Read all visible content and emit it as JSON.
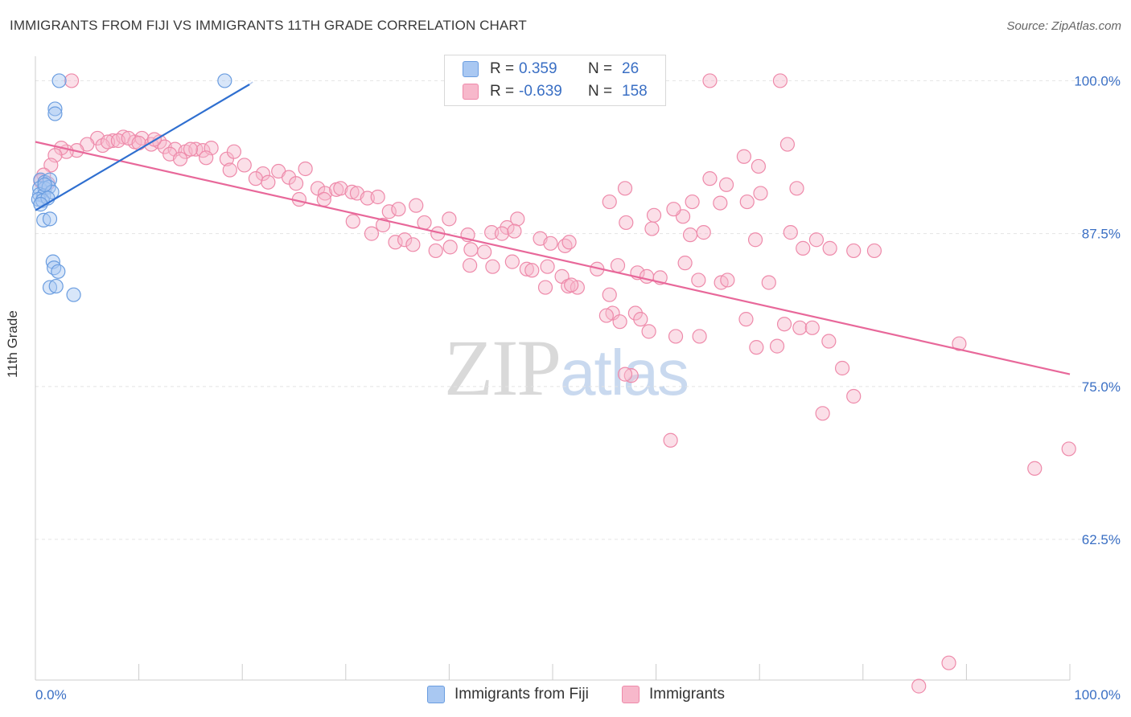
{
  "title": "IMMIGRANTS FROM FIJI VS IMMIGRANTS 11TH GRADE CORRELATION CHART",
  "source": "Source: ZipAtlas.com",
  "watermark": {
    "zip": "ZIP",
    "atlas": "atlas"
  },
  "legend": {
    "r_label": "R =",
    "n_label": "N =",
    "rows": [
      {
        "r": "0.359",
        "n": "26",
        "color": "#a9c8f2"
      },
      {
        "r": "-0.639",
        "n": "158",
        "color": "#f7b8cb"
      }
    ]
  },
  "bottom_legend": [
    {
      "label": "Immigrants from Fiji",
      "color": "#a9c8f2"
    },
    {
      "label": "Immigrants",
      "color": "#f7b8cb"
    }
  ],
  "colors": {
    "fiji_fill": "#a9c8f2",
    "fiji_stroke": "#6a9de0",
    "fiji_line": "#2f6fd0",
    "imm_fill": "#f7b8cb",
    "imm_stroke": "#ee8aaa",
    "imm_line": "#e8689a",
    "tick_text": "#3a6fc4"
  },
  "chart_data": {
    "type": "scatter",
    "ylabel": "11th Grade",
    "xlim": [
      0,
      100
    ],
    "ylim": [
      51,
      102
    ],
    "x_tick_labels": [
      {
        "value": 0,
        "label": "0.0%"
      },
      {
        "value": 100,
        "label": "100.0%"
      }
    ],
    "y_tick_labels": [
      {
        "value": 100,
        "label": "100.0%"
      },
      {
        "value": 87.5,
        "label": "87.5%"
      },
      {
        "value": 75,
        "label": "75.0%"
      },
      {
        "value": 62.5,
        "label": "62.5%"
      }
    ],
    "grid": true,
    "series": [
      {
        "name": "Immigrants from Fiji",
        "trend": {
          "x": [
            0,
            20.7
          ],
          "y": [
            89.4,
            99.7
          ]
        },
        "points": [
          [
            2.3,
            100
          ],
          [
            18.3,
            100
          ],
          [
            1.9,
            97.7
          ],
          [
            1.9,
            97.3
          ],
          [
            0.5,
            91.9
          ],
          [
            0.9,
            91.7
          ],
          [
            1.4,
            91.9
          ],
          [
            0.4,
            91.2
          ],
          [
            0.9,
            91.2
          ],
          [
            1.3,
            91.3
          ],
          [
            0.4,
            90.7
          ],
          [
            0.8,
            90.6
          ],
          [
            1.6,
            90.9
          ],
          [
            0.3,
            90.3
          ],
          [
            0.7,
            90.2
          ],
          [
            1.2,
            90.4
          ],
          [
            0.5,
            89.9
          ],
          [
            0.8,
            88.6
          ],
          [
            1.4,
            88.7
          ],
          [
            1.7,
            85.2
          ],
          [
            1.8,
            84.7
          ],
          [
            2.2,
            84.4
          ],
          [
            1.4,
            83.1
          ],
          [
            2.0,
            83.2
          ],
          [
            3.7,
            82.5
          ],
          [
            0.9,
            91.5
          ]
        ]
      },
      {
        "name": "Immigrants",
        "trend": {
          "x": [
            0,
            100
          ],
          "y": [
            95.0,
            76.0
          ]
        },
        "points": [
          [
            65.2,
            100
          ],
          [
            72.0,
            100
          ],
          [
            3.5,
            100
          ],
          [
            6.0,
            95.3
          ],
          [
            7.5,
            95.1
          ],
          [
            8.5,
            95.4
          ],
          [
            9.6,
            95.0
          ],
          [
            10.3,
            95.3
          ],
          [
            11.2,
            94.8
          ],
          [
            12.0,
            95.0
          ],
          [
            12.5,
            94.6
          ],
          [
            13.5,
            94.4
          ],
          [
            14.5,
            94.2
          ],
          [
            15.5,
            94.4
          ],
          [
            16.2,
            94.3
          ],
          [
            17.0,
            94.5
          ],
          [
            5.0,
            94.8
          ],
          [
            4.0,
            94.3
          ],
          [
            3.0,
            94.2
          ],
          [
            2.5,
            94.5
          ],
          [
            1.9,
            93.9
          ],
          [
            6.5,
            94.7
          ],
          [
            7.0,
            95.0
          ],
          [
            8.0,
            95.1
          ],
          [
            9.0,
            95.3
          ],
          [
            10.0,
            94.9
          ],
          [
            11.5,
            95.2
          ],
          [
            13.0,
            94.0
          ],
          [
            14.0,
            93.6
          ],
          [
            15.0,
            94.4
          ],
          [
            16.5,
            93.7
          ],
          [
            18.5,
            93.6
          ],
          [
            19.2,
            94.2
          ],
          [
            1.5,
            93.1
          ],
          [
            0.8,
            92.3
          ],
          [
            0.5,
            91.8
          ],
          [
            1.2,
            91.6
          ],
          [
            18.8,
            92.7
          ],
          [
            20.2,
            93.1
          ],
          [
            22.0,
            92.4
          ],
          [
            23.5,
            92.6
          ],
          [
            21.3,
            92.0
          ],
          [
            22.5,
            91.7
          ],
          [
            24.5,
            92.1
          ],
          [
            26.1,
            92.8
          ],
          [
            25.2,
            91.6
          ],
          [
            27.3,
            91.2
          ],
          [
            28.0,
            90.8
          ],
          [
            29.1,
            91.1
          ],
          [
            29.5,
            91.2
          ],
          [
            30.6,
            90.9
          ],
          [
            31.1,
            90.8
          ],
          [
            32.1,
            90.4
          ],
          [
            33.1,
            90.5
          ],
          [
            27.9,
            90.3
          ],
          [
            25.5,
            90.3
          ],
          [
            34.2,
            89.3
          ],
          [
            35.1,
            89.5
          ],
          [
            36.8,
            89.8
          ],
          [
            30.7,
            88.5
          ],
          [
            33.6,
            88.2
          ],
          [
            37.6,
            88.4
          ],
          [
            40.0,
            88.7
          ],
          [
            32.5,
            87.5
          ],
          [
            34.8,
            86.8
          ],
          [
            35.7,
            87.0
          ],
          [
            38.9,
            87.5
          ],
          [
            41.8,
            87.4
          ],
          [
            44.1,
            87.6
          ],
          [
            45.6,
            88.0
          ],
          [
            46.6,
            88.7
          ],
          [
            36.5,
            86.6
          ],
          [
            38.7,
            86.1
          ],
          [
            40.1,
            86.4
          ],
          [
            42.1,
            86.2
          ],
          [
            43.4,
            86.0
          ],
          [
            45.1,
            87.5
          ],
          [
            46.3,
            87.7
          ],
          [
            48.8,
            87.1
          ],
          [
            49.8,
            86.7
          ],
          [
            51.2,
            86.5
          ],
          [
            51.6,
            86.8
          ],
          [
            57.1,
            88.4
          ],
          [
            59.6,
            87.9
          ],
          [
            62.6,
            88.9
          ],
          [
            63.3,
            87.4
          ],
          [
            64.6,
            87.6
          ],
          [
            69.6,
            87.0
          ],
          [
            73.0,
            87.6
          ],
          [
            74.2,
            86.3
          ],
          [
            75.5,
            87.0
          ],
          [
            76.8,
            86.3
          ],
          [
            79.1,
            86.1
          ],
          [
            81.1,
            86.1
          ],
          [
            42.0,
            84.9
          ],
          [
            44.2,
            84.8
          ],
          [
            46.1,
            85.2
          ],
          [
            47.5,
            84.6
          ],
          [
            48.0,
            84.5
          ],
          [
            49.5,
            84.8
          ],
          [
            50.9,
            84.0
          ],
          [
            51.5,
            83.2
          ],
          [
            52.4,
            83.1
          ],
          [
            54.3,
            84.6
          ],
          [
            56.3,
            84.9
          ],
          [
            58.2,
            84.3
          ],
          [
            59.1,
            84.0
          ],
          [
            60.4,
            83.9
          ],
          [
            62.8,
            85.1
          ],
          [
            64.1,
            83.7
          ],
          [
            66.3,
            83.5
          ],
          [
            66.9,
            83.7
          ],
          [
            70.9,
            83.5
          ],
          [
            49.3,
            83.1
          ],
          [
            51.8,
            83.3
          ],
          [
            55.5,
            82.5
          ],
          [
            55.8,
            81.0
          ],
          [
            58.0,
            81.0
          ],
          [
            58.5,
            80.5
          ],
          [
            56.5,
            80.3
          ],
          [
            55.2,
            80.8
          ],
          [
            59.3,
            79.5
          ],
          [
            61.9,
            79.1
          ],
          [
            64.2,
            79.1
          ],
          [
            68.7,
            80.5
          ],
          [
            72.4,
            80.1
          ],
          [
            73.9,
            79.8
          ],
          [
            75.1,
            79.8
          ],
          [
            76.7,
            78.7
          ],
          [
            78.0,
            76.5
          ],
          [
            69.7,
            78.2
          ],
          [
            71.7,
            78.3
          ],
          [
            79.1,
            74.2
          ],
          [
            76.1,
            72.8
          ],
          [
            57.6,
            75.9
          ],
          [
            57.0,
            76.0
          ],
          [
            61.4,
            70.6
          ],
          [
            89.3,
            78.5
          ],
          [
            96.6,
            68.3
          ],
          [
            99.9,
            69.9
          ],
          [
            88.3,
            52.4
          ],
          [
            85.4,
            50.5
          ],
          [
            73.6,
            91.2
          ],
          [
            72.7,
            94.8
          ],
          [
            68.5,
            93.8
          ],
          [
            69.9,
            93.0
          ],
          [
            70.1,
            90.8
          ],
          [
            66.8,
            91.5
          ],
          [
            66.2,
            90.0
          ],
          [
            63.5,
            90.1
          ],
          [
            65.2,
            92.0
          ],
          [
            68.8,
            90.1
          ],
          [
            61.7,
            89.5
          ],
          [
            59.8,
            89.0
          ],
          [
            57.0,
            91.2
          ],
          [
            55.5,
            90.1
          ]
        ]
      }
    ]
  }
}
